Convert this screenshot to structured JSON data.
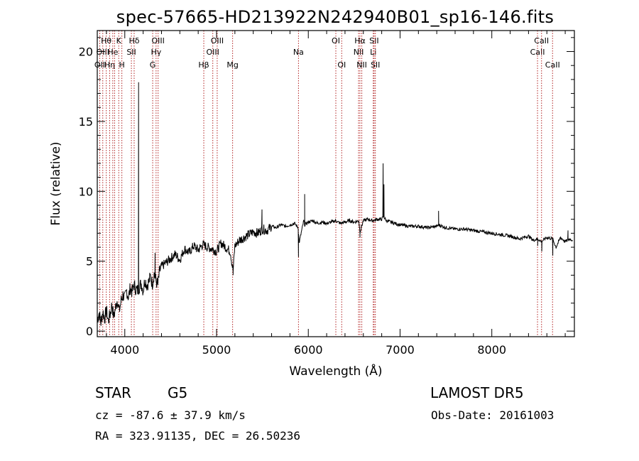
{
  "header": {
    "title": "spec-57665-HD213922N242940B01_sp16-146.fits"
  },
  "chart_data": {
    "type": "line",
    "title": "spec-57665-HD213922N242940B01_sp16-146.fits",
    "xlabel": "Wavelength (Å)",
    "ylabel": "Flux (relative)",
    "xlim": [
      3700,
      8900
    ],
    "ylim": [
      -0.4,
      21.5
    ],
    "xticks": [
      4000,
      5000,
      6000,
      7000,
      8000
    ],
    "yticks": [
      0,
      5,
      10,
      15,
      20
    ],
    "grid": false,
    "series": [
      {
        "x": [
          3700,
          3720,
          3740,
          3760,
          3780,
          3800,
          3820,
          3840,
          3860,
          3880,
          3900,
          3920,
          3940,
          3960,
          3980,
          4000,
          4020,
          4040,
          4060,
          4080,
          4100,
          4120,
          4140,
          4160,
          4180,
          4200,
          4220,
          4240,
          4260,
          4280,
          4300,
          4320,
          4340,
          4360,
          4380,
          4400,
          4450,
          4500,
          4550,
          4600,
          4650,
          4700,
          4750,
          4800,
          4850,
          4900,
          4950,
          5000,
          5050,
          5100,
          5150,
          5180,
          5200,
          5250,
          5300,
          5350,
          5400,
          5450,
          5500,
          5550,
          5600,
          5650,
          5700,
          5750,
          5800,
          5850,
          5890,
          5900,
          5950,
          5960,
          6000,
          6050,
          6100,
          6150,
          6200,
          6250,
          6300,
          6350,
          6400,
          6450,
          6500,
          6550,
          6563,
          6600,
          6650,
          6700,
          6750,
          6800,
          6820,
          6850,
          6900,
          6950,
          7000,
          7100,
          7200,
          7300,
          7400,
          7420,
          7500,
          7600,
          7700,
          7800,
          7900,
          8000,
          8100,
          8200,
          8300,
          8400,
          8450,
          8500,
          8540,
          8600,
          8662,
          8700,
          8750,
          8800,
          8850,
          8880
        ],
        "y": [
          0.8,
          1.3,
          0.6,
          1.4,
          0.9,
          1.5,
          0.7,
          1.2,
          1.9,
          1.0,
          1.7,
          2.3,
          1.4,
          2.2,
          2.6,
          2.3,
          2.9,
          2.4,
          3.1,
          2.8,
          3.3,
          3.0,
          2.9,
          3.2,
          3.4,
          2.9,
          3.7,
          3.3,
          3.5,
          3.9,
          3.4,
          4.1,
          3.6,
          3.3,
          4.3,
          4.6,
          4.9,
          5.2,
          5.5,
          5.1,
          5.9,
          5.6,
          6.1,
          5.8,
          6.2,
          6.0,
          5.9,
          5.7,
          6.3,
          6.0,
          5.7,
          4.3,
          6.1,
          6.5,
          6.7,
          6.9,
          7.1,
          7.0,
          7.3,
          7.2,
          7.5,
          7.4,
          7.6,
          7.5,
          7.6,
          7.7,
          7.4,
          6.3,
          7.9,
          7.6,
          7.8,
          7.9,
          7.7,
          7.8,
          7.7,
          7.8,
          7.9,
          7.7,
          7.8,
          7.9,
          7.8,
          7.9,
          7.1,
          7.9,
          8.0,
          7.9,
          8.0,
          8.0,
          8.2,
          7.9,
          7.8,
          7.7,
          7.6,
          7.5,
          7.5,
          7.4,
          7.5,
          7.6,
          7.4,
          7.3,
          7.3,
          7.2,
          7.1,
          7.0,
          6.9,
          6.8,
          6.6,
          6.8,
          6.5,
          6.6,
          6.4,
          6.7,
          6.6,
          6.0,
          6.7,
          6.4,
          6.6,
          6.5
        ]
      }
    ],
    "emission_spikes": [
      {
        "x": 4150,
        "y": 17.8
      },
      {
        "x": 4330,
        "y": 5.6
      },
      {
        "x": 5495,
        "y": 8.7
      },
      {
        "x": 5960,
        "y": 9.8
      },
      {
        "x": 6815,
        "y": 12.0
      },
      {
        "x": 6825,
        "y": 10.5
      },
      {
        "x": 7420,
        "y": 8.6
      },
      {
        "x": 8830,
        "y": 7.2
      }
    ],
    "absorption_dips": [
      {
        "x": 5180,
        "y": 4.0
      },
      {
        "x": 5893,
        "y": 5.3
      },
      {
        "x": 6563,
        "y": 6.7
      },
      {
        "x": 8500,
        "y": 6.1
      },
      {
        "x": 8545,
        "y": 5.7
      },
      {
        "x": 8665,
        "y": 5.4
      }
    ],
    "line_markers": [
      {
        "x": 3727,
        "label": "OII",
        "row": 2
      },
      {
        "x": 3760,
        "label": "OIII",
        "row": 1
      },
      {
        "x": 3798,
        "label": "Hθ",
        "row": 0
      },
      {
        "x": 3835,
        "label": "Hη",
        "row": 2
      },
      {
        "x": 3869,
        "label": "He",
        "row": 1
      },
      {
        "x": 3889,
        "label": "",
        "row": 2
      },
      {
        "x": 3934,
        "label": "K",
        "row": 0
      },
      {
        "x": 3968,
        "label": "H",
        "row": 2
      },
      {
        "x": 4072,
        "label": "SII",
        "row": 1
      },
      {
        "x": 4102,
        "label": "Hδ",
        "row": 0
      },
      {
        "x": 4304,
        "label": "G",
        "row": 2
      },
      {
        "x": 4341,
        "label": "Hγ",
        "row": 1
      },
      {
        "x": 4363,
        "label": "OIII",
        "row": 0
      },
      {
        "x": 4861,
        "label": "Hβ",
        "row": 2
      },
      {
        "x": 4959,
        "label": "OIII",
        "row": 1
      },
      {
        "x": 5007,
        "label": "OIII",
        "row": 0
      },
      {
        "x": 5175,
        "label": "Mg",
        "row": 2
      },
      {
        "x": 5893,
        "label": "Na",
        "row": 1
      },
      {
        "x": 6300,
        "label": "OI",
        "row": 0
      },
      {
        "x": 6364,
        "label": "OI",
        "row": 2
      },
      {
        "x": 6548,
        "label": "NII",
        "row": 1
      },
      {
        "x": 6563,
        "label": "Hα",
        "row": 0
      },
      {
        "x": 6583,
        "label": "NII",
        "row": 2
      },
      {
        "x": 6708,
        "label": "Li",
        "row": 1
      },
      {
        "x": 6717,
        "label": "SII",
        "row": 0
      },
      {
        "x": 6731,
        "label": "SII",
        "row": 2
      },
      {
        "x": 8498,
        "label": "CaII",
        "row": 1
      },
      {
        "x": 8542,
        "label": "CaII",
        "row": 0
      },
      {
        "x": 8662,
        "label": "CaII",
        "row": 2
      }
    ]
  },
  "info": {
    "class": "STAR",
    "subclass": "G5",
    "survey": "LAMOST DR5",
    "cz": "cz = -87.6 ± 37.9 km/s",
    "obsdate": "Obs-Date: 20161003",
    "radec": "RA = 323.91135, DEC =  26.50236"
  },
  "colors": {
    "line_marker": "#b22222",
    "spectrum": "#000000"
  }
}
